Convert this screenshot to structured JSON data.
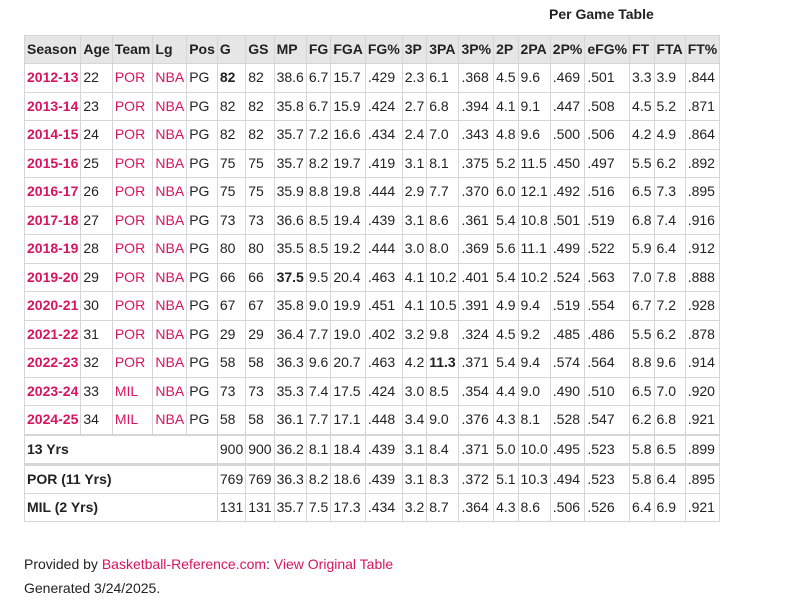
{
  "caption": "Per Game Table",
  "columns": [
    "Season",
    "Age",
    "Team",
    "Lg",
    "Pos",
    "G",
    "GS",
    "MP",
    "FG",
    "FGA",
    "FG%",
    "3P",
    "3PA",
    "3P%",
    "2P",
    "2PA",
    "2P%",
    "eFG%",
    "FT",
    "FTA",
    "FT%"
  ],
  "rows": [
    {
      "season": "2012-13",
      "age": "22",
      "team": "POR",
      "lg": "NBA",
      "pos": "PG",
      "stats": [
        "82",
        "82",
        "38.6",
        "6.7",
        "15.7",
        ".429",
        "2.3",
        "6.1",
        ".368",
        "4.5",
        "9.6",
        ".469",
        ".501",
        "3.3",
        "3.9",
        ".844"
      ],
      "bold_stats": [
        0
      ]
    },
    {
      "season": "2013-14",
      "age": "23",
      "team": "POR",
      "lg": "NBA",
      "pos": "PG",
      "stats": [
        "82",
        "82",
        "35.8",
        "6.7",
        "15.9",
        ".424",
        "2.7",
        "6.8",
        ".394",
        "4.1",
        "9.1",
        ".447",
        ".508",
        "4.5",
        "5.2",
        ".871"
      ],
      "bold_stats": []
    },
    {
      "season": "2014-15",
      "age": "24",
      "team": "POR",
      "lg": "NBA",
      "pos": "PG",
      "stats": [
        "82",
        "82",
        "35.7",
        "7.2",
        "16.6",
        ".434",
        "2.4",
        "7.0",
        ".343",
        "4.8",
        "9.6",
        ".500",
        ".506",
        "4.2",
        "4.9",
        ".864"
      ],
      "bold_stats": []
    },
    {
      "season": "2015-16",
      "age": "25",
      "team": "POR",
      "lg": "NBA",
      "pos": "PG",
      "stats": [
        "75",
        "75",
        "35.7",
        "8.2",
        "19.7",
        ".419",
        "3.1",
        "8.1",
        ".375",
        "5.2",
        "11.5",
        ".450",
        ".497",
        "5.5",
        "6.2",
        ".892"
      ],
      "bold_stats": []
    },
    {
      "season": "2016-17",
      "age": "26",
      "team": "POR",
      "lg": "NBA",
      "pos": "PG",
      "stats": [
        "75",
        "75",
        "35.9",
        "8.8",
        "19.8",
        ".444",
        "2.9",
        "7.7",
        ".370",
        "6.0",
        "12.1",
        ".492",
        ".516",
        "6.5",
        "7.3",
        ".895"
      ],
      "bold_stats": []
    },
    {
      "season": "2017-18",
      "age": "27",
      "team": "POR",
      "lg": "NBA",
      "pos": "PG",
      "stats": [
        "73",
        "73",
        "36.6",
        "8.5",
        "19.4",
        ".439",
        "3.1",
        "8.6",
        ".361",
        "5.4",
        "10.8",
        ".501",
        ".519",
        "6.8",
        "7.4",
        ".916"
      ],
      "bold_stats": []
    },
    {
      "season": "2018-19",
      "age": "28",
      "team": "POR",
      "lg": "NBA",
      "pos": "PG",
      "stats": [
        "80",
        "80",
        "35.5",
        "8.5",
        "19.2",
        ".444",
        "3.0",
        "8.0",
        ".369",
        "5.6",
        "11.1",
        ".499",
        ".522",
        "5.9",
        "6.4",
        ".912"
      ],
      "bold_stats": []
    },
    {
      "season": "2019-20",
      "age": "29",
      "team": "POR",
      "lg": "NBA",
      "pos": "PG",
      "stats": [
        "66",
        "66",
        "37.5",
        "9.5",
        "20.4",
        ".463",
        "4.1",
        "10.2",
        ".401",
        "5.4",
        "10.2",
        ".524",
        ".563",
        "7.0",
        "7.8",
        ".888"
      ],
      "bold_stats": [
        2
      ]
    },
    {
      "season": "2020-21",
      "age": "30",
      "team": "POR",
      "lg": "NBA",
      "pos": "PG",
      "stats": [
        "67",
        "67",
        "35.8",
        "9.0",
        "19.9",
        ".451",
        "4.1",
        "10.5",
        ".391",
        "4.9",
        "9.4",
        ".519",
        ".554",
        "6.7",
        "7.2",
        ".928"
      ],
      "bold_stats": []
    },
    {
      "season": "2021-22",
      "age": "31",
      "team": "POR",
      "lg": "NBA",
      "pos": "PG",
      "stats": [
        "29",
        "29",
        "36.4",
        "7.7",
        "19.0",
        ".402",
        "3.2",
        "9.8",
        ".324",
        "4.5",
        "9.2",
        ".485",
        ".486",
        "5.5",
        "6.2",
        ".878"
      ],
      "bold_stats": []
    },
    {
      "season": "2022-23",
      "age": "32",
      "team": "POR",
      "lg": "NBA",
      "pos": "PG",
      "stats": [
        "58",
        "58",
        "36.3",
        "9.6",
        "20.7",
        ".463",
        "4.2",
        "11.3",
        ".371",
        "5.4",
        "9.4",
        ".574",
        ".564",
        "8.8",
        "9.6",
        ".914"
      ],
      "bold_stats": [
        7
      ]
    },
    {
      "season": "2023-24",
      "age": "33",
      "team": "MIL",
      "lg": "NBA",
      "pos": "PG",
      "stats": [
        "73",
        "73",
        "35.3",
        "7.4",
        "17.5",
        ".424",
        "3.0",
        "8.5",
        ".354",
        "4.4",
        "9.0",
        ".490",
        ".510",
        "6.5",
        "7.0",
        ".920"
      ],
      "bold_stats": []
    },
    {
      "season": "2024-25",
      "age": "34",
      "team": "MIL",
      "lg": "NBA",
      "pos": "PG",
      "stats": [
        "58",
        "58",
        "36.1",
        "7.7",
        "17.1",
        ".448",
        "3.4",
        "9.0",
        ".376",
        "4.3",
        "8.1",
        ".528",
        ".547",
        "6.2",
        "6.8",
        ".921"
      ],
      "bold_stats": []
    }
  ],
  "summary": [
    {
      "label": "13 Yrs",
      "stats": [
        "900",
        "900",
        "36.2",
        "8.1",
        "18.4",
        ".439",
        "3.1",
        "8.4",
        ".371",
        "5.0",
        "10.0",
        ".495",
        ".523",
        "5.8",
        "6.5",
        ".899"
      ]
    },
    {
      "label": "POR (11 Yrs)",
      "stats": [
        "769",
        "769",
        "36.3",
        "8.2",
        "18.6",
        ".439",
        "3.1",
        "8.3",
        ".372",
        "5.1",
        "10.3",
        ".494",
        ".523",
        "5.8",
        "6.4",
        ".895"
      ]
    },
    {
      "label": "MIL (2 Yrs)",
      "stats": [
        "131",
        "131",
        "35.7",
        "7.5",
        "17.3",
        ".434",
        "3.2",
        "8.7",
        ".364",
        "4.3",
        "8.6",
        ".506",
        ".526",
        "6.4",
        "6.9",
        ".921"
      ]
    }
  ],
  "footer": {
    "provided_by": "Provided by ",
    "source_link": "Basketball-Reference.com",
    "separator": ": ",
    "view_link": "View Original Table",
    "generated": "Generated 3/24/2025."
  },
  "colors": {
    "link": "#d6145f",
    "header_bg": "#e6e6e6",
    "border": "#d6d6d6"
  }
}
